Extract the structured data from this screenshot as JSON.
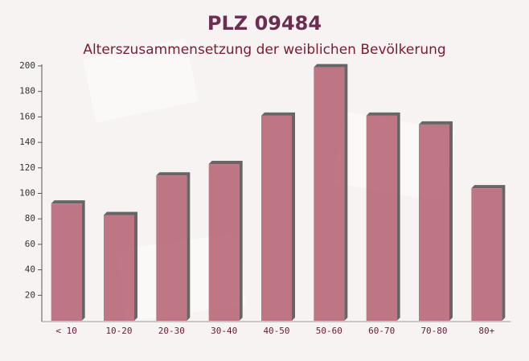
{
  "chart_data": {
    "type": "bar",
    "title": "PLZ 09484",
    "subtitle": "Alterszusammensetzung der weiblichen Bevölkerung",
    "categories": [
      "< 10",
      "10-20",
      "20-30",
      "30-40",
      "40-50",
      "50-60",
      "60-70",
      "70-80",
      "80+"
    ],
    "values": [
      92,
      83,
      114,
      123,
      161,
      199,
      161,
      154,
      104
    ],
    "color": "#b86878",
    "ylim": [
      0,
      200
    ],
    "yticks": [
      20,
      40,
      60,
      80,
      100,
      120,
      140,
      160,
      180,
      200
    ],
    "grid": false
  }
}
